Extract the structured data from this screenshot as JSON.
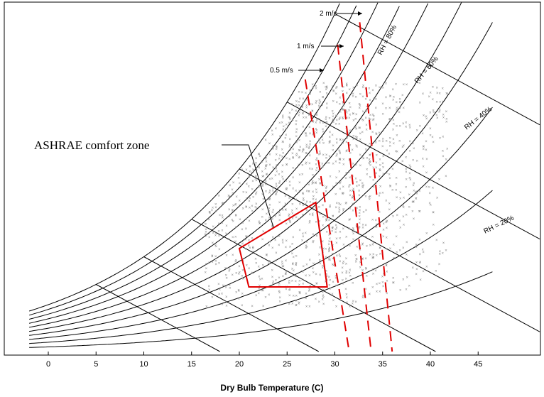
{
  "chart_data": {
    "type": "scatter",
    "title": "",
    "xlabel": "Dry Bulb Temperature (C)",
    "ylabel": "",
    "xlim": [
      -2,
      46
    ],
    "x_ticks": [
      0,
      5,
      10,
      15,
      20,
      25,
      30,
      35,
      40,
      45
    ],
    "grid": false,
    "legend": "none",
    "annotations": {
      "comfort_zone": "ASHRAE comfort zone",
      "rh_labels": [
        "RH = 80%",
        "RH = 60%",
        "RH = 40%",
        "RH = 20%"
      ],
      "air_speed_labels": [
        "2 m/s",
        "1 m/s",
        "0.5 m/s"
      ]
    },
    "air_speed_lines": [
      {
        "label": "0.5 m/s",
        "temp_at_base": 31.5
      },
      {
        "label": "1 m/s",
        "temp_at_base": 33.8
      },
      {
        "label": "2 m/s",
        "temp_at_base": 36.0
      }
    ],
    "comfort_zone_polygon": [
      [
        20,
        0.0083
      ],
      [
        28,
        0.012
      ],
      [
        29.2,
        0.0052
      ],
      [
        21,
        0.0052
      ]
    ],
    "colors": {
      "comfort_zone": "#e00000",
      "air_speed_lines": "#e00000",
      "curves": "#000000",
      "scatter": "#8a8a8a"
    }
  }
}
